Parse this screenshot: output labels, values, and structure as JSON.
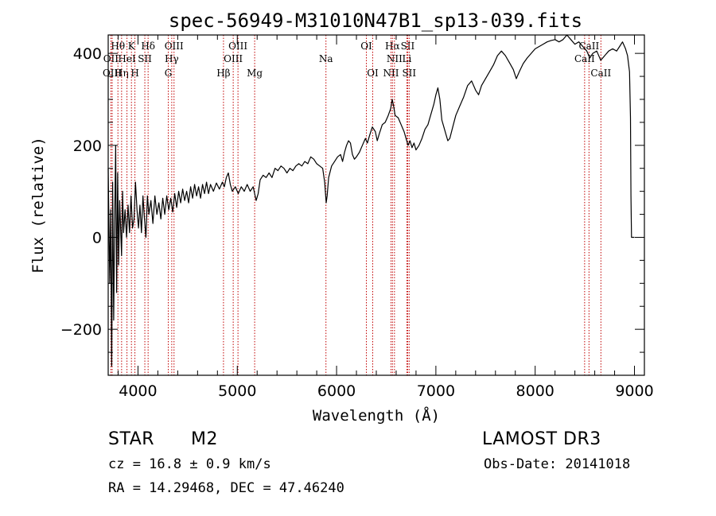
{
  "chart_data": {
    "type": "line",
    "title": "spec-56949-M31010N47B1_sp13-039.fits",
    "xlabel": "Wavelength (Å)",
    "ylabel": "Flux (relative)",
    "xlim": [
      3700,
      9100
    ],
    "ylim": [
      -300,
      440
    ],
    "x_ticks": [
      {
        "value": 4000,
        "label": "4000"
      },
      {
        "value": 5000,
        "label": "5000"
      },
      {
        "value": 6000,
        "label": "6000"
      },
      {
        "value": 7000,
        "label": "7000"
      },
      {
        "value": 8000,
        "label": "8000"
      },
      {
        "value": 9000,
        "label": "9000"
      }
    ],
    "y_ticks": [
      {
        "value": -200,
        "label": "−200"
      },
      {
        "value": 0,
        "label": "0"
      },
      {
        "value": 200,
        "label": "200"
      },
      {
        "value": 400,
        "label": "400"
      }
    ],
    "series": [
      {
        "name": "spectrum",
        "points": [
          [
            3700,
            150
          ],
          [
            3715,
            -100
          ],
          [
            3725,
            60
          ],
          [
            3735,
            -280
          ],
          [
            3745,
            120
          ],
          [
            3755,
            -180
          ],
          [
            3765,
            30
          ],
          [
            3775,
            200
          ],
          [
            3785,
            -120
          ],
          [
            3795,
            140
          ],
          [
            3805,
            -60
          ],
          [
            3815,
            80
          ],
          [
            3825,
            20
          ],
          [
            3835,
            -40
          ],
          [
            3845,
            100
          ],
          [
            3855,
            10
          ],
          [
            3870,
            60
          ],
          [
            3885,
            0
          ],
          [
            3900,
            70
          ],
          [
            3915,
            10
          ],
          [
            3930,
            90
          ],
          [
            3945,
            20
          ],
          [
            3960,
            40
          ],
          [
            3975,
            120
          ],
          [
            3990,
            60
          ],
          [
            4005,
            20
          ],
          [
            4020,
            70
          ],
          [
            4035,
            10
          ],
          [
            4050,
            90
          ],
          [
            4065,
            40
          ],
          [
            4080,
            0
          ],
          [
            4095,
            90
          ],
          [
            4110,
            50
          ],
          [
            4130,
            80
          ],
          [
            4150,
            30
          ],
          [
            4170,
            90
          ],
          [
            4190,
            50
          ],
          [
            4210,
            75
          ],
          [
            4230,
            40
          ],
          [
            4250,
            85
          ],
          [
            4270,
            50
          ],
          [
            4290,
            90
          ],
          [
            4310,
            60
          ],
          [
            4330,
            85
          ],
          [
            4350,
            55
          ],
          [
            4370,
            95
          ],
          [
            4390,
            65
          ],
          [
            4410,
            100
          ],
          [
            4430,
            75
          ],
          [
            4450,
            105
          ],
          [
            4470,
            80
          ],
          [
            4490,
            100
          ],
          [
            4510,
            75
          ],
          [
            4530,
            110
          ],
          [
            4550,
            85
          ],
          [
            4570,
            115
          ],
          [
            4590,
            90
          ],
          [
            4610,
            110
          ],
          [
            4630,
            85
          ],
          [
            4650,
            115
          ],
          [
            4670,
            95
          ],
          [
            4690,
            120
          ],
          [
            4710,
            95
          ],
          [
            4730,
            115
          ],
          [
            4760,
            100
          ],
          [
            4790,
            118
          ],
          [
            4820,
            105
          ],
          [
            4850,
            120
          ],
          [
            4870,
            110
          ],
          [
            4890,
            130
          ],
          [
            4910,
            140
          ],
          [
            4930,
            115
          ],
          [
            4950,
            100
          ],
          [
            4980,
            110
          ],
          [
            5010,
            95
          ],
          [
            5040,
            110
          ],
          [
            5070,
            100
          ],
          [
            5100,
            115
          ],
          [
            5130,
            100
          ],
          [
            5160,
            110
          ],
          [
            5190,
            80
          ],
          [
            5210,
            95
          ],
          [
            5230,
            125
          ],
          [
            5260,
            135
          ],
          [
            5290,
            130
          ],
          [
            5320,
            140
          ],
          [
            5350,
            130
          ],
          [
            5380,
            150
          ],
          [
            5410,
            145
          ],
          [
            5440,
            155
          ],
          [
            5470,
            150
          ],
          [
            5500,
            140
          ],
          [
            5530,
            150
          ],
          [
            5560,
            145
          ],
          [
            5590,
            155
          ],
          [
            5620,
            160
          ],
          [
            5650,
            155
          ],
          [
            5680,
            165
          ],
          [
            5710,
            160
          ],
          [
            5740,
            175
          ],
          [
            5770,
            170
          ],
          [
            5800,
            160
          ],
          [
            5830,
            155
          ],
          [
            5860,
            150
          ],
          [
            5880,
            120
          ],
          [
            5895,
            75
          ],
          [
            5905,
            90
          ],
          [
            5920,
            130
          ],
          [
            5950,
            155
          ],
          [
            5980,
            165
          ],
          [
            6010,
            175
          ],
          [
            6040,
            180
          ],
          [
            6060,
            165
          ],
          [
            6080,
            185
          ],
          [
            6100,
            200
          ],
          [
            6120,
            210
          ],
          [
            6140,
            205
          ],
          [
            6160,
            180
          ],
          [
            6180,
            170
          ],
          [
            6200,
            175
          ],
          [
            6230,
            185
          ],
          [
            6260,
            200
          ],
          [
            6290,
            215
          ],
          [
            6310,
            205
          ],
          [
            6330,
            220
          ],
          [
            6360,
            240
          ],
          [
            6390,
            230
          ],
          [
            6410,
            210
          ],
          [
            6430,
            225
          ],
          [
            6460,
            245
          ],
          [
            6490,
            250
          ],
          [
            6520,
            265
          ],
          [
            6545,
            280
          ],
          [
            6560,
            300
          ],
          [
            6575,
            285
          ],
          [
            6590,
            265
          ],
          [
            6620,
            260
          ],
          [
            6650,
            245
          ],
          [
            6680,
            230
          ],
          [
            6700,
            215
          ],
          [
            6720,
            200
          ],
          [
            6740,
            210
          ],
          [
            6760,
            195
          ],
          [
            6780,
            205
          ],
          [
            6800,
            190
          ],
          [
            6830,
            200
          ],
          [
            6860,
            215
          ],
          [
            6890,
            235
          ],
          [
            6920,
            245
          ],
          [
            6940,
            260
          ],
          [
            6960,
            275
          ],
          [
            6980,
            290
          ],
          [
            7000,
            310
          ],
          [
            7020,
            325
          ],
          [
            7040,
            300
          ],
          [
            7060,
            255
          ],
          [
            7080,
            240
          ],
          [
            7100,
            225
          ],
          [
            7120,
            210
          ],
          [
            7140,
            215
          ],
          [
            7170,
            240
          ],
          [
            7200,
            265
          ],
          [
            7240,
            285
          ],
          [
            7280,
            305
          ],
          [
            7320,
            330
          ],
          [
            7360,
            340
          ],
          [
            7400,
            320
          ],
          [
            7430,
            310
          ],
          [
            7460,
            330
          ],
          [
            7500,
            345
          ],
          [
            7540,
            360
          ],
          [
            7580,
            375
          ],
          [
            7620,
            395
          ],
          [
            7660,
            405
          ],
          [
            7700,
            395
          ],
          [
            7740,
            380
          ],
          [
            7780,
            365
          ],
          [
            7810,
            345
          ],
          [
            7840,
            360
          ],
          [
            7880,
            378
          ],
          [
            7920,
            390
          ],
          [
            7960,
            400
          ],
          [
            8000,
            410
          ],
          [
            8040,
            415
          ],
          [
            8080,
            420
          ],
          [
            8120,
            425
          ],
          [
            8160,
            428
          ],
          [
            8200,
            430
          ],
          [
            8240,
            425
          ],
          [
            8280,
            430
          ],
          [
            8320,
            440
          ],
          [
            8360,
            430
          ],
          [
            8400,
            420
          ],
          [
            8440,
            425
          ],
          [
            8480,
            415
          ],
          [
            8520,
            405
          ],
          [
            8550,
            390
          ],
          [
            8580,
            400
          ],
          [
            8620,
            405
          ],
          [
            8660,
            385
          ],
          [
            8700,
            395
          ],
          [
            8740,
            405
          ],
          [
            8780,
            410
          ],
          [
            8820,
            405
          ],
          [
            8850,
            415
          ],
          [
            8880,
            425
          ],
          [
            8910,
            410
          ],
          [
            8930,
            395
          ],
          [
            8950,
            360
          ],
          [
            8960,
            260
          ],
          [
            8965,
            90
          ],
          [
            8970,
            0
          ],
          [
            9000,
            0
          ]
        ]
      }
    ],
    "emission_lines": [
      {
        "name": "Hθ",
        "wavelength": 3798,
        "row": 1
      },
      {
        "name": "OII",
        "wavelength": 3727,
        "row": 2
      },
      {
        "name": "OIII",
        "wavelength": 3740,
        "row": 3
      },
      {
        "name": "Hη",
        "wavelength": 3835,
        "row": 3
      },
      {
        "name": "K",
        "wavelength": 3934,
        "row": 1
      },
      {
        "name": "HeI",
        "wavelength": 3889,
        "row": 2
      },
      {
        "name": "H",
        "wavelength": 3969,
        "row": 3
      },
      {
        "name": "Hδ",
        "wavelength": 4102,
        "row": 1
      },
      {
        "name": "SII",
        "wavelength": 4069,
        "row": 2
      },
      {
        "name": "OIII",
        "wavelength": 4363,
        "row": 1
      },
      {
        "name": "Hγ",
        "wavelength": 4340,
        "row": 2
      },
      {
        "name": "G",
        "wavelength": 4305,
        "row": 3
      },
      {
        "name": "OIII",
        "wavelength": 5007,
        "row": 1
      },
      {
        "name": "OIII",
        "wavelength": 4959,
        "row": 2
      },
      {
        "name": "Hβ",
        "wavelength": 4861,
        "row": 3
      },
      {
        "name": "Mg",
        "wavelength": 5175,
        "row": 3
      },
      {
        "name": "Na",
        "wavelength": 5893,
        "row": 2
      },
      {
        "name": "OI",
        "wavelength": 6300,
        "row": 1
      },
      {
        "name": "OI",
        "wavelength": 6364,
        "row": 3
      },
      {
        "name": "Hα",
        "wavelength": 6563,
        "row": 1
      },
      {
        "name": "SII",
        "wavelength": 6716,
        "row": 1
      },
      {
        "name": "NII",
        "wavelength": 6583,
        "row": 2
      },
      {
        "name": "Li",
        "wavelength": 6708,
        "row": 2
      },
      {
        "name": "NII",
        "wavelength": 6548,
        "row": 3
      },
      {
        "name": "SII",
        "wavelength": 6731,
        "row": 3
      },
      {
        "name": "CaII",
        "wavelength": 8542,
        "row": 1
      },
      {
        "name": "CaII",
        "wavelength": 8498,
        "row": 2
      },
      {
        "name": "CaII",
        "wavelength": 8662,
        "row": 3
      }
    ],
    "line_color": "#000000",
    "marker_color": "#c00000"
  },
  "info": {
    "object_class": "STAR",
    "subclass": "M2",
    "survey": "LAMOST DR3",
    "redshift": "cz =  16.8 ± 0.9 km/s",
    "obs_date": "Obs-Date: 20141018",
    "coords": "RA =  14.29468, DEC =  47.46240"
  }
}
